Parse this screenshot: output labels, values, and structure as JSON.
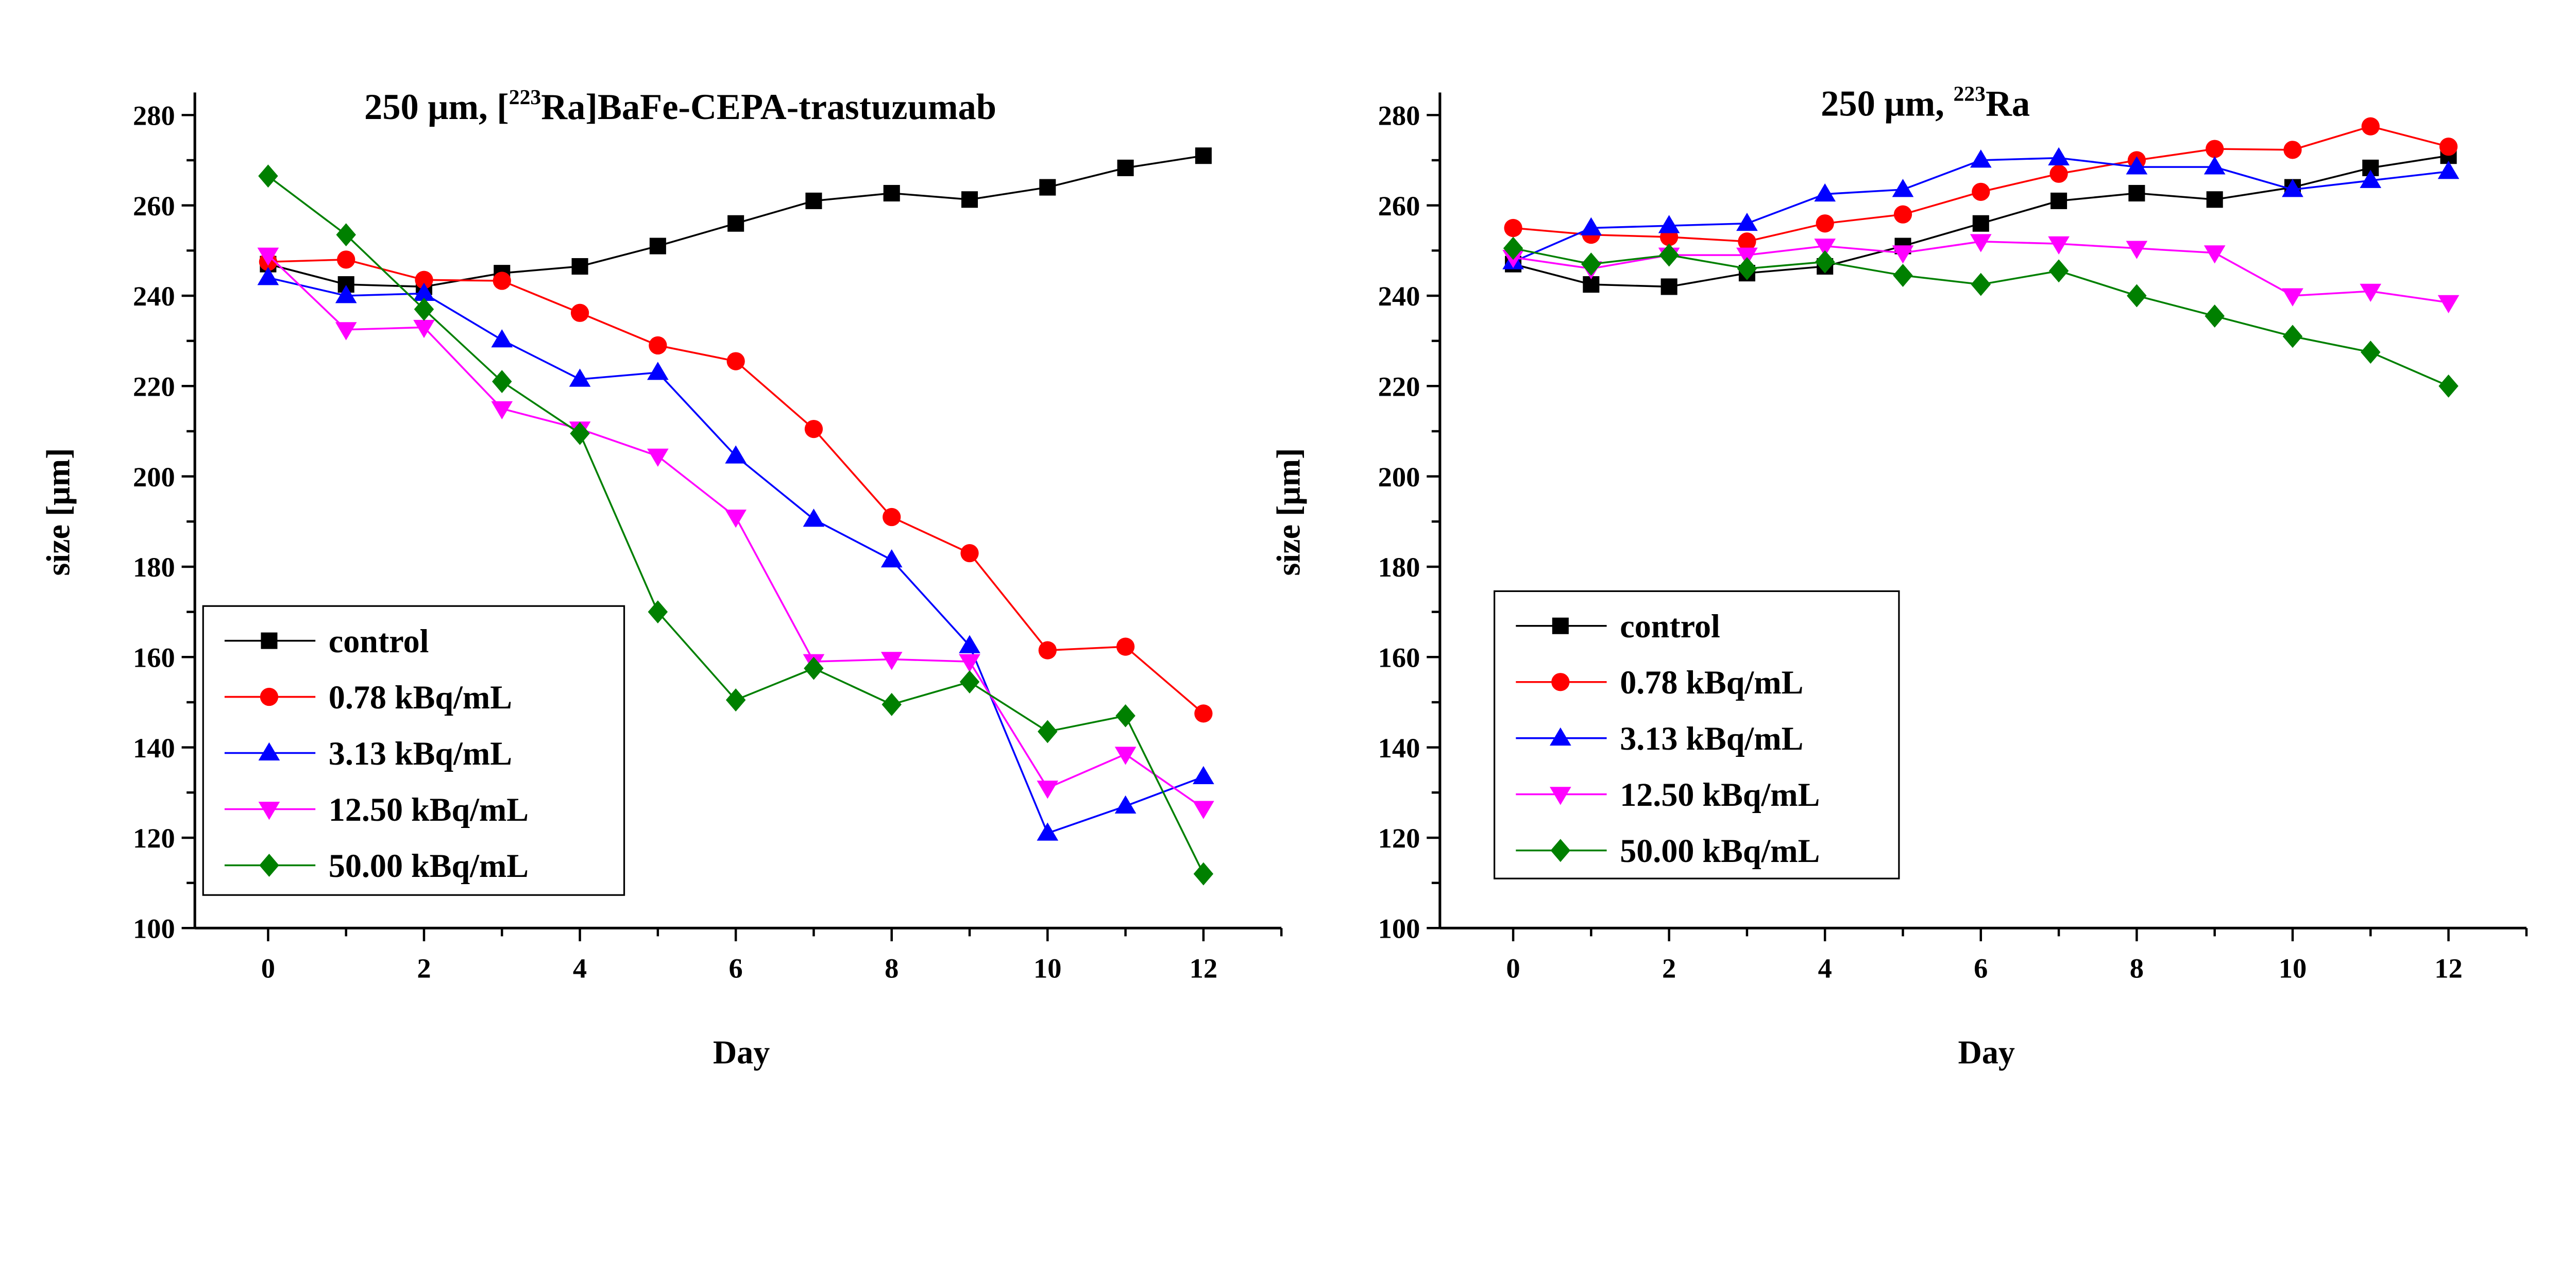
{
  "chart_data": [
    {
      "type": "line",
      "title": "250 μm, [223Ra]BaFe-CEPA-trastuzumab",
      "title_parts": {
        "pre": "250 μm, [",
        "sup": "223",
        "post": "Ra]BaFe-CEPA-trastuzumab"
      },
      "xlabel": "Day",
      "ylabel": "size [μm]",
      "xlim": [
        -0.94,
        13
      ],
      "ylim": [
        100,
        285
      ],
      "xticks": [
        0,
        2,
        4,
        6,
        8,
        10,
        12
      ],
      "yticks": [
        100,
        120,
        140,
        160,
        180,
        200,
        220,
        240,
        260,
        280
      ],
      "legend_position": "bottom-left",
      "x": [
        0,
        1,
        2,
        3,
        4,
        5,
        6,
        7,
        8,
        9,
        10,
        11,
        12
      ],
      "series": [
        {
          "name": "control",
          "color": "#000000",
          "marker": "square",
          "values": [
            247,
            242.5,
            242,
            245,
            246.5,
            251,
            256,
            261,
            262.7,
            261.3,
            264,
            268.3,
            271
          ]
        },
        {
          "name": "0.78 kBq/mL",
          "color": "#ff0000",
          "marker": "circle",
          "values": [
            247.5,
            248,
            243.5,
            243.3,
            236.2,
            229,
            225.5,
            210.5,
            191,
            183,
            161.5,
            162.3,
            147.5
          ]
        },
        {
          "name": "3.13 kBq/mL",
          "color": "#0000ff",
          "marker": "triangle-up",
          "values": [
            244,
            240,
            240.5,
            230.2,
            221.5,
            223,
            204.5,
            190.5,
            181.5,
            162.5,
            121,
            127,
            133.5
          ]
        },
        {
          "name": "12.50 kBq/mL",
          "color": "#ff00ff",
          "marker": "triangle-down",
          "values": [
            249,
            232.5,
            233,
            215,
            210.5,
            204.5,
            191,
            159,
            159.5,
            159,
            131,
            138.5,
            126.5
          ]
        },
        {
          "name": "50.00 kBq/mL",
          "color": "#008000",
          "marker": "diamond",
          "values": [
            266.5,
            253.5,
            237,
            221,
            209.5,
            170,
            150.5,
            157.5,
            149.5,
            154.5,
            143.5,
            147,
            112
          ]
        }
      ]
    },
    {
      "type": "line",
      "title": "250 μm, 223Ra",
      "title_parts": {
        "pre": "250 μm, ",
        "sup": "223",
        "post": "Ra"
      },
      "xlabel": "Day",
      "ylabel": "size [μm]",
      "xlim": [
        -0.94,
        13
      ],
      "ylim": [
        100,
        285
      ],
      "xticks": [
        0,
        2,
        4,
        6,
        8,
        10,
        12
      ],
      "yticks": [
        100,
        120,
        140,
        160,
        180,
        200,
        220,
        240,
        260,
        280
      ],
      "legend_position": "bottom-left",
      "x": [
        0,
        1,
        2,
        3,
        4,
        5,
        6,
        7,
        8,
        9,
        10,
        11,
        12
      ],
      "series": [
        {
          "name": "control",
          "color": "#000000",
          "marker": "square",
          "values": [
            247,
            242.5,
            242,
            245,
            246.5,
            251,
            256,
            261,
            262.7,
            261.3,
            264,
            268.3,
            271
          ]
        },
        {
          "name": "0.78 kBq/mL",
          "color": "#ff0000",
          "marker": "circle",
          "values": [
            255,
            253.5,
            253,
            252,
            256,
            258,
            263,
            267,
            270,
            272.5,
            272.3,
            277.5,
            273
          ]
        },
        {
          "name": "3.13 kBq/mL",
          "color": "#0000ff",
          "marker": "triangle-up",
          "values": [
            247.5,
            255,
            255.5,
            256,
            262.5,
            263.5,
            270,
            270.5,
            268.5,
            268.5,
            263.5,
            265.5,
            267.5
          ]
        },
        {
          "name": "12.50 kBq/mL",
          "color": "#ff00ff",
          "marker": "triangle-down",
          "values": [
            248.5,
            246,
            249,
            249,
            251,
            249.5,
            252,
            251.5,
            250.5,
            249.5,
            240,
            241,
            238.5
          ]
        },
        {
          "name": "50.00 kBq/mL",
          "color": "#008000",
          "marker": "diamond",
          "values": [
            250.5,
            247,
            249,
            246,
            247.5,
            244.5,
            242.5,
            245.5,
            240,
            235.5,
            231,
            227.5,
            220
          ]
        }
      ]
    }
  ]
}
